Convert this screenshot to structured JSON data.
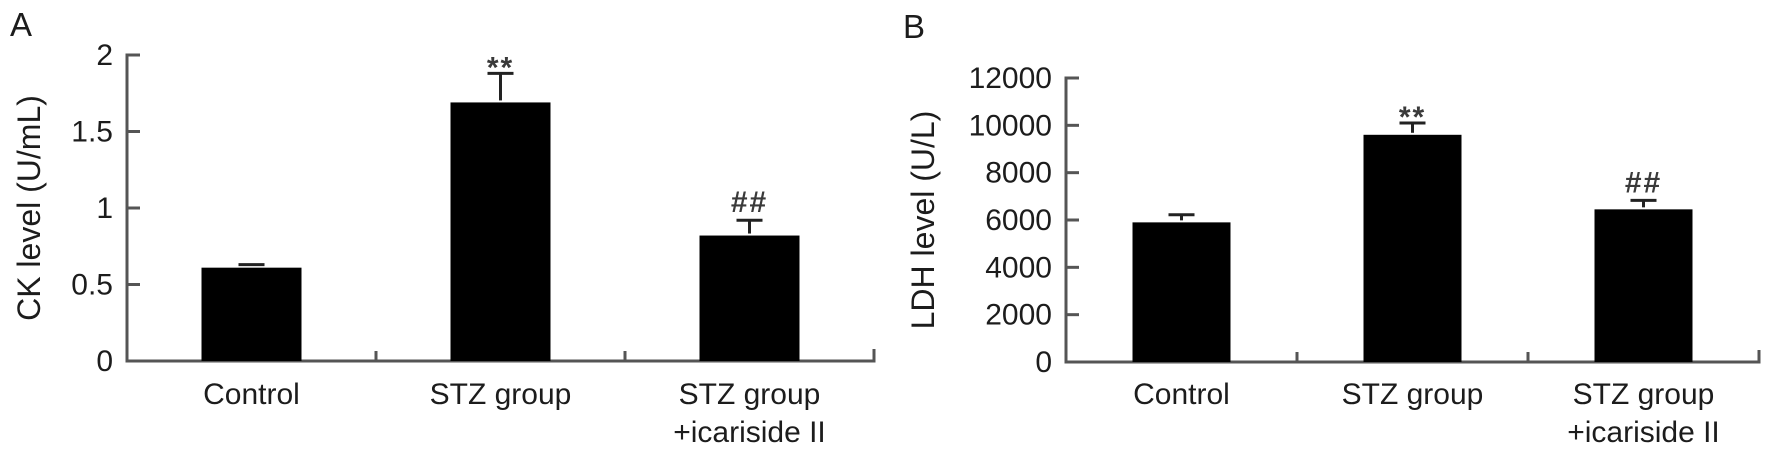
{
  "figure": {
    "background": "#ffffff",
    "bar_color": "#000000",
    "axis_color": "#555555",
    "error_bar_color": "#222222",
    "text_color": "#1c1c1c",
    "annotation_color": "#3a3a3a"
  },
  "chart_data": [
    {
      "type": "bar",
      "panel_label": "A",
      "title": "",
      "xlabel": "",
      "ylabel": "CK level (U/mL)",
      "ylim": [
        0,
        2
      ],
      "ytick_values": [
        0,
        0.5,
        1,
        1.5,
        2
      ],
      "yticks": [
        "0",
        "0.5",
        "1",
        "1.5",
        "2"
      ],
      "categories": [
        "Control",
        "STZ group",
        "STZ group\n+icariside II"
      ],
      "values": [
        0.61,
        1.69,
        0.82
      ],
      "errors": [
        0.02,
        0.19,
        0.1
      ],
      "annotations": [
        "",
        "**",
        "##"
      ],
      "grid": false,
      "legend": false
    },
    {
      "type": "bar",
      "panel_label": "B",
      "title": "",
      "xlabel": "",
      "ylabel": "LDH level (U/L)",
      "ylim": [
        0,
        12000
      ],
      "ytick_values": [
        0,
        2000,
        4000,
        6000,
        8000,
        10000,
        12000
      ],
      "yticks": [
        "0",
        "2000",
        "4000",
        "6000",
        "8000",
        "10000",
        "12000"
      ],
      "categories": [
        "Control",
        "STZ group",
        "STZ group\n+icariside II"
      ],
      "values": [
        5900,
        9600,
        6450
      ],
      "errors": [
        320,
        500,
        380
      ],
      "annotations": [
        "",
        "**",
        "##"
      ],
      "grid": false,
      "legend": false
    }
  ]
}
